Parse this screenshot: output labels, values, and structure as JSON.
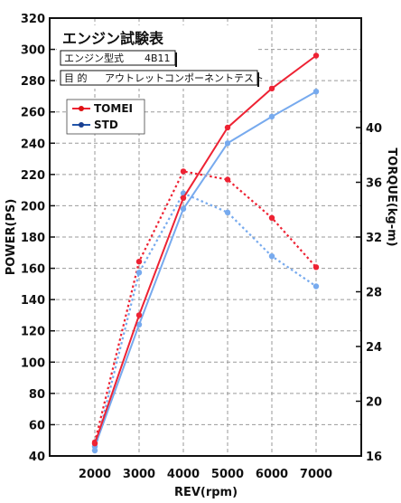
{
  "chart_data": {
    "type": "line",
    "title": "エンジン試験表",
    "info": {
      "engine_label": "エンジン型式",
      "engine_value": "4B11",
      "purpose_label": "目 的",
      "purpose_value": "アウトレットコンポーネントテスト"
    },
    "xlabel": "REV(rpm)",
    "ylabel_left": "POWER(PS)",
    "ylabel_right": "TORQUE(kg-m)",
    "x": [
      2000,
      3000,
      4000,
      5000,
      6000,
      7000
    ],
    "x_ticks": [
      "2000",
      "3000",
      "4000",
      "5000",
      "6000",
      "7000"
    ],
    "ylim_left": [
      40,
      320
    ],
    "y_ticks_left": [
      "40",
      "60",
      "80",
      "100",
      "120",
      "140",
      "160",
      "180",
      "200",
      "220",
      "240",
      "260",
      "280",
      "300",
      "320"
    ],
    "ylim_right": [
      16,
      48
    ],
    "y_ticks_right": [
      "16",
      "20",
      "24",
      "28",
      "32",
      "36",
      "40"
    ],
    "y_ticks_right_values": [
      16,
      20,
      24,
      28,
      32,
      36,
      40
    ],
    "grid": true,
    "legend": "top-left",
    "series": [
      {
        "name": "TOMEI",
        "metric": "power",
        "axis": "left",
        "style": "solid",
        "color": "#ee2233",
        "values": [
          48,
          130,
          205,
          250,
          275,
          296
        ]
      },
      {
        "name": "STD",
        "metric": "power",
        "axis": "left",
        "style": "solid",
        "color": "#77aaee",
        "values": [
          46,
          124,
          198,
          240,
          257,
          273
        ]
      },
      {
        "name": "TOMEI",
        "metric": "torque",
        "axis": "right",
        "style": "dotted",
        "color": "#ee2233",
        "values": [
          17,
          30.2,
          36.8,
          36.2,
          33.4,
          29.8
        ]
      },
      {
        "name": "STD",
        "metric": "torque",
        "axis": "right",
        "style": "dotted",
        "color": "#77aaee",
        "values": [
          16.4,
          29.4,
          35.2,
          33.8,
          30.6,
          28.4
        ]
      }
    ],
    "legend_entries": [
      {
        "label": "TOMEI",
        "line_color": "#ee2233",
        "marker_color": "#dd1111"
      },
      {
        "label": "STD",
        "line_color": "#2255aa",
        "marker_color": "#1a3f8f"
      }
    ]
  }
}
